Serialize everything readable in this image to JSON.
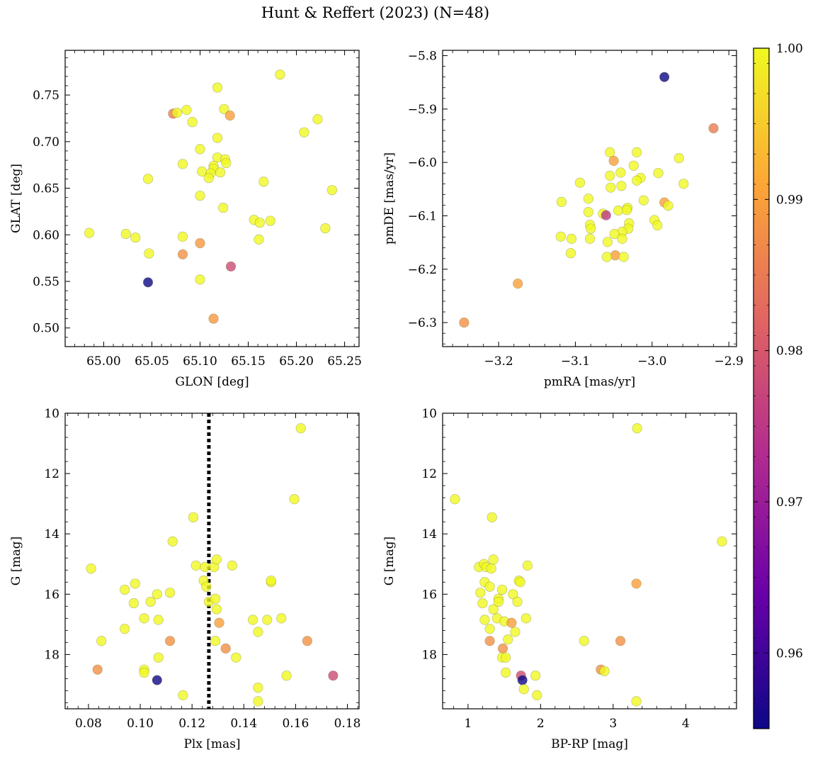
{
  "figure": {
    "title": "Hunt & Reffert (2023) (N=48)"
  },
  "colorbar": {
    "min": 0.955,
    "max": 1.0,
    "ticks": [
      "0.96",
      "0.97",
      "0.98",
      "0.99",
      "1.00"
    ],
    "tick_values": [
      0.96,
      0.97,
      0.98,
      0.99,
      1.0
    ],
    "colormap": "plasma",
    "colors": [
      "#0d0887",
      "#6a00a8",
      "#b12a90",
      "#e16462",
      "#fca636",
      "#f0f921"
    ]
  },
  "chart_data": [
    {
      "type": "scatter",
      "id": "glon-glat",
      "xlabel": "GLON [deg]",
      "ylabel": "GLAT [deg]",
      "xlim": [
        64.96,
        65.265
      ],
      "ylim": [
        0.48,
        0.798
      ],
      "xticks": [
        65.0,
        65.05,
        65.1,
        65.15,
        65.2,
        65.25
      ],
      "xtick_labels": [
        "65.00",
        "65.05",
        "65.10",
        "65.15",
        "65.20",
        "65.25"
      ],
      "yticks": [
        0.5,
        0.55,
        0.6,
        0.65,
        0.7,
        0.75
      ],
      "ytick_labels": [
        "0.50",
        "0.55",
        "0.60",
        "0.65",
        "0.70",
        "0.75"
      ],
      "points": [
        {
          "x": 64.985,
          "y": 0.602,
          "c": 1.0
        },
        {
          "x": 65.023,
          "y": 0.601,
          "c": 1.0
        },
        {
          "x": 65.033,
          "y": 0.597,
          "c": 1.0
        },
        {
          "x": 65.046,
          "y": 0.66,
          "c": 1.0
        },
        {
          "x": 65.047,
          "y": 0.58,
          "c": 1.0
        },
        {
          "x": 65.046,
          "y": 0.549,
          "c": 0.955
        },
        {
          "x": 65.072,
          "y": 0.73,
          "c": 0.985
        },
        {
          "x": 65.076,
          "y": 0.731,
          "c": 1.0
        },
        {
          "x": 65.086,
          "y": 0.734,
          "c": 1.0
        },
        {
          "x": 65.092,
          "y": 0.721,
          "c": 1.0
        },
        {
          "x": 65.082,
          "y": 0.676,
          "c": 1.0
        },
        {
          "x": 65.082,
          "y": 0.598,
          "c": 1.0
        },
        {
          "x": 65.082,
          "y": 0.579,
          "c": 0.988
        },
        {
          "x": 65.1,
          "y": 0.692,
          "c": 1.0
        },
        {
          "x": 65.102,
          "y": 0.668,
          "c": 1.0
        },
        {
          "x": 65.1,
          "y": 0.642,
          "c": 1.0
        },
        {
          "x": 65.1,
          "y": 0.591,
          "c": 0.989
        },
        {
          "x": 65.1,
          "y": 0.552,
          "c": 1.0
        },
        {
          "x": 65.118,
          "y": 0.758,
          "c": 1.0
        },
        {
          "x": 65.118,
          "y": 0.704,
          "c": 1.0
        },
        {
          "x": 65.118,
          "y": 0.683,
          "c": 1.0
        },
        {
          "x": 65.114,
          "y": 0.674,
          "c": 1.0
        },
        {
          "x": 65.114,
          "y": 0.671,
          "c": 1.0
        },
        {
          "x": 65.121,
          "y": 0.667,
          "c": 1.0
        },
        {
          "x": 65.111,
          "y": 0.666,
          "c": 1.0
        },
        {
          "x": 65.109,
          "y": 0.661,
          "c": 1.0
        },
        {
          "x": 65.126,
          "y": 0.681,
          "c": 1.0
        },
        {
          "x": 65.127,
          "y": 0.677,
          "c": 1.0
        },
        {
          "x": 65.125,
          "y": 0.735,
          "c": 1.0
        },
        {
          "x": 65.131,
          "y": 0.728,
          "c": 0.99
        },
        {
          "x": 65.124,
          "y": 0.629,
          "c": 1.0
        },
        {
          "x": 65.132,
          "y": 0.566,
          "c": 0.978
        },
        {
          "x": 65.114,
          "y": 0.51,
          "c": 0.989
        },
        {
          "x": 65.166,
          "y": 0.657,
          "c": 1.0
        },
        {
          "x": 65.156,
          "y": 0.616,
          "c": 1.0
        },
        {
          "x": 65.162,
          "y": 0.613,
          "c": 1.0
        },
        {
          "x": 65.173,
          "y": 0.615,
          "c": 1.0
        },
        {
          "x": 65.161,
          "y": 0.595,
          "c": 1.0
        },
        {
          "x": 65.183,
          "y": 0.772,
          "c": 1.0
        },
        {
          "x": 65.222,
          "y": 0.724,
          "c": 1.0
        },
        {
          "x": 65.208,
          "y": 0.71,
          "c": 1.0
        },
        {
          "x": 65.237,
          "y": 0.648,
          "c": 1.0
        },
        {
          "x": 65.23,
          "y": 0.607,
          "c": 1.0
        }
      ]
    },
    {
      "type": "scatter",
      "id": "pmra-pmde",
      "xlabel": "pmRA [mas/yr]",
      "ylabel": "pmDE [mas/yr]",
      "xlim": [
        -3.273,
        -2.89
      ],
      "ylim": [
        -6.345,
        -5.79
      ],
      "xticks": [
        -3.2,
        -3.1,
        -3.0,
        -2.9
      ],
      "xtick_labels": [
        "−3.2",
        "−3.1",
        "−3.0",
        "−2.9"
      ],
      "yticks": [
        -6.3,
        -6.2,
        -6.1,
        -6.0,
        -5.9,
        -5.8
      ],
      "ytick_labels": [
        "−6.3",
        "−6.2",
        "−6.1",
        "−6.0",
        "−5.9",
        "−5.8"
      ],
      "points": [
        {
          "x": -2.984,
          "y": -5.84,
          "c": 0.955
        },
        {
          "x": -2.92,
          "y": -5.936,
          "c": 0.985
        },
        {
          "x": -3.055,
          "y": -5.981,
          "c": 1.0
        },
        {
          "x": -3.02,
          "y": -5.981,
          "c": 1.0
        },
        {
          "x": -3.05,
          "y": -5.997,
          "c": 0.99
        },
        {
          "x": -2.965,
          "y": -5.992,
          "c": 1.0
        },
        {
          "x": -3.024,
          "y": -6.006,
          "c": 1.0
        },
        {
          "x": -3.041,
          "y": -6.019,
          "c": 1.0
        },
        {
          "x": -2.992,
          "y": -6.02,
          "c": 1.0
        },
        {
          "x": -3.055,
          "y": -6.025,
          "c": 1.0
        },
        {
          "x": -3.015,
          "y": -6.029,
          "c": 1.0
        },
        {
          "x": -3.02,
          "y": -6.034,
          "c": 1.0
        },
        {
          "x": -3.094,
          "y": -6.038,
          "c": 1.0
        },
        {
          "x": -2.959,
          "y": -6.04,
          "c": 1.0
        },
        {
          "x": -3.04,
          "y": -6.044,
          "c": 1.0
        },
        {
          "x": -3.054,
          "y": -6.047,
          "c": 1.0
        },
        {
          "x": -3.083,
          "y": -6.068,
          "c": 1.0
        },
        {
          "x": -3.011,
          "y": -6.071,
          "c": 1.0
        },
        {
          "x": -2.984,
          "y": -6.075,
          "c": 0.99
        },
        {
          "x": -2.979,
          "y": -6.081,
          "c": 1.0
        },
        {
          "x": -3.032,
          "y": -6.085,
          "c": 1.0
        },
        {
          "x": -3.044,
          "y": -6.09,
          "c": 1.0
        },
        {
          "x": -3.033,
          "y": -6.089,
          "c": 1.0
        },
        {
          "x": -3.083,
          "y": -6.093,
          "c": 1.0
        },
        {
          "x": -3.064,
          "y": -6.096,
          "c": 1.0
        },
        {
          "x": -3.06,
          "y": -6.099,
          "c": 0.975
        },
        {
          "x": -2.997,
          "y": -6.108,
          "c": 1.0
        },
        {
          "x": -3.03,
          "y": -6.114,
          "c": 1.0
        },
        {
          "x": -3.118,
          "y": -6.074,
          "c": 1.0
        },
        {
          "x": -3.081,
          "y": -6.117,
          "c": 1.0
        },
        {
          "x": -3.08,
          "y": -6.124,
          "c": 1.0
        },
        {
          "x": -2.993,
          "y": -6.118,
          "c": 1.0
        },
        {
          "x": -3.031,
          "y": -6.124,
          "c": 1.0
        },
        {
          "x": -3.039,
          "y": -6.13,
          "c": 1.0
        },
        {
          "x": -3.049,
          "y": -6.134,
          "c": 1.0
        },
        {
          "x": -3.119,
          "y": -6.139,
          "c": 1.0
        },
        {
          "x": -3.105,
          "y": -6.143,
          "c": 1.0
        },
        {
          "x": -3.081,
          "y": -6.143,
          "c": 1.0
        },
        {
          "x": -3.039,
          "y": -6.143,
          "c": 1.0
        },
        {
          "x": -3.058,
          "y": -6.149,
          "c": 1.0
        },
        {
          "x": -3.106,
          "y": -6.17,
          "c": 1.0
        },
        {
          "x": -3.048,
          "y": -6.174,
          "c": 0.99
        },
        {
          "x": -3.059,
          "y": -6.177,
          "c": 1.0
        },
        {
          "x": -3.037,
          "y": -6.177,
          "c": 1.0
        },
        {
          "x": -3.175,
          "y": -6.227,
          "c": 0.99
        },
        {
          "x": -3.245,
          "y": -6.3,
          "c": 0.988
        }
      ]
    },
    {
      "type": "scatter",
      "id": "plx-g",
      "xlabel": "Plx [mas]",
      "ylabel": "G [mag]",
      "xlim": [
        0.071,
        0.1845
      ],
      "ylim": [
        19.8,
        10.0
      ],
      "y_inverted": true,
      "xticks": [
        0.08,
        0.1,
        0.12,
        0.14,
        0.16,
        0.18
      ],
      "xtick_labels": [
        "0.08",
        "0.10",
        "0.12",
        "0.14",
        "0.16",
        "0.18"
      ],
      "yticks": [
        10,
        12,
        14,
        16,
        18
      ],
      "ytick_labels": [
        "10",
        "12",
        "14",
        "16",
        "18"
      ],
      "vline": {
        "x": 0.1265,
        "style": "dotted",
        "color": "#000000"
      },
      "points": [
        {
          "x": 0.081,
          "y": 15.15,
          "c": 1.0
        },
        {
          "x": 0.0835,
          "y": 18.5,
          "c": 0.988
        },
        {
          "x": 0.085,
          "y": 17.55,
          "c": 1.0
        },
        {
          "x": 0.094,
          "y": 15.85,
          "c": 1.0
        },
        {
          "x": 0.094,
          "y": 17.15,
          "c": 1.0
        },
        {
          "x": 0.098,
          "y": 15.65,
          "c": 1.0
        },
        {
          "x": 0.0975,
          "y": 16.3,
          "c": 1.0
        },
        {
          "x": 0.1015,
          "y": 16.8,
          "c": 1.0
        },
        {
          "x": 0.1015,
          "y": 18.5,
          "c": 1.0
        },
        {
          "x": 0.1015,
          "y": 18.6,
          "c": 1.0
        },
        {
          "x": 0.104,
          "y": 16.25,
          "c": 1.0
        },
        {
          "x": 0.1065,
          "y": 16.0,
          "c": 1.0
        },
        {
          "x": 0.107,
          "y": 16.85,
          "c": 1.0
        },
        {
          "x": 0.107,
          "y": 18.1,
          "c": 1.0
        },
        {
          "x": 0.1065,
          "y": 18.85,
          "c": 0.955
        },
        {
          "x": 0.1115,
          "y": 15.95,
          "c": 1.0
        },
        {
          "x": 0.1115,
          "y": 17.55,
          "c": 0.988
        },
        {
          "x": 0.1125,
          "y": 14.25,
          "c": 1.0
        },
        {
          "x": 0.1165,
          "y": 19.35,
          "c": 1.0
        },
        {
          "x": 0.1205,
          "y": 13.45,
          "c": 1.0
        },
        {
          "x": 0.1215,
          "y": 15.05,
          "c": 1.0
        },
        {
          "x": 0.1245,
          "y": 15.55,
          "c": 1.0
        },
        {
          "x": 0.125,
          "y": 15.1,
          "c": 1.0
        },
        {
          "x": 0.1255,
          "y": 15.75,
          "c": 1.0
        },
        {
          "x": 0.1265,
          "y": 16.25,
          "c": 1.0
        },
        {
          "x": 0.1285,
          "y": 15.1,
          "c": 1.0
        },
        {
          "x": 0.1295,
          "y": 14.85,
          "c": 1.0
        },
        {
          "x": 0.129,
          "y": 16.15,
          "c": 1.0
        },
        {
          "x": 0.1295,
          "y": 16.5,
          "c": 1.0
        },
        {
          "x": 0.1305,
          "y": 16.95,
          "c": 0.99
        },
        {
          "x": 0.129,
          "y": 17.55,
          "c": 1.0
        },
        {
          "x": 0.133,
          "y": 17.8,
          "c": 0.988
        },
        {
          "x": 0.1355,
          "y": 15.05,
          "c": 1.0
        },
        {
          "x": 0.137,
          "y": 18.1,
          "c": 1.0
        },
        {
          "x": 0.1435,
          "y": 16.85,
          "c": 1.0
        },
        {
          "x": 0.1455,
          "y": 17.25,
          "c": 1.0
        },
        {
          "x": 0.1455,
          "y": 19.1,
          "c": 1.0
        },
        {
          "x": 0.1455,
          "y": 19.55,
          "c": 1.0
        },
        {
          "x": 0.149,
          "y": 16.85,
          "c": 1.0
        },
        {
          "x": 0.1505,
          "y": 15.6,
          "c": 1.0
        },
        {
          "x": 0.1505,
          "y": 15.55,
          "c": 1.0
        },
        {
          "x": 0.1545,
          "y": 16.8,
          "c": 1.0
        },
        {
          "x": 0.1565,
          "y": 18.7,
          "c": 1.0
        },
        {
          "x": 0.1595,
          "y": 12.85,
          "c": 1.0
        },
        {
          "x": 0.162,
          "y": 10.5,
          "c": 1.0
        },
        {
          "x": 0.1645,
          "y": 17.55,
          "c": 0.988
        },
        {
          "x": 0.1745,
          "y": 18.7,
          "c": 0.978
        }
      ]
    },
    {
      "type": "scatter",
      "id": "bprp-g",
      "xlabel": "BP-RP [mag]",
      "ylabel": "G [mag]",
      "xlim": [
        0.65,
        4.7
      ],
      "ylim": [
        19.8,
        10.0
      ],
      "y_inverted": true,
      "xticks": [
        1,
        2,
        3,
        4
      ],
      "xtick_labels": [
        "1",
        "2",
        "3",
        "4"
      ],
      "yticks": [
        10,
        12,
        14,
        16,
        18
      ],
      "ytick_labels": [
        "10",
        "12",
        "14",
        "16",
        "18"
      ],
      "points": [
        {
          "x": 0.82,
          "y": 12.85,
          "c": 1.0
        },
        {
          "x": 1.33,
          "y": 13.45,
          "c": 1.0
        },
        {
          "x": 1.15,
          "y": 15.1,
          "c": 1.0
        },
        {
          "x": 1.22,
          "y": 15.0,
          "c": 1.0
        },
        {
          "x": 1.25,
          "y": 15.1,
          "c": 1.0
        },
        {
          "x": 1.32,
          "y": 15.15,
          "c": 1.0
        },
        {
          "x": 1.35,
          "y": 14.85,
          "c": 1.0
        },
        {
          "x": 1.23,
          "y": 15.6,
          "c": 1.0
        },
        {
          "x": 1.3,
          "y": 15.75,
          "c": 1.0
        },
        {
          "x": 1.17,
          "y": 15.95,
          "c": 1.0
        },
        {
          "x": 1.2,
          "y": 16.3,
          "c": 1.0
        },
        {
          "x": 1.35,
          "y": 16.5,
          "c": 1.0
        },
        {
          "x": 1.42,
          "y": 16.15,
          "c": 1.0
        },
        {
          "x": 1.42,
          "y": 16.25,
          "c": 1.0
        },
        {
          "x": 1.47,
          "y": 15.85,
          "c": 1.0
        },
        {
          "x": 1.23,
          "y": 16.85,
          "c": 1.0
        },
        {
          "x": 1.4,
          "y": 16.8,
          "c": 1.0
        },
        {
          "x": 1.5,
          "y": 16.9,
          "c": 1.0
        },
        {
          "x": 1.3,
          "y": 17.15,
          "c": 1.0
        },
        {
          "x": 1.3,
          "y": 17.55,
          "c": 0.988
        },
        {
          "x": 1.55,
          "y": 17.5,
          "c": 1.0
        },
        {
          "x": 1.6,
          "y": 16.95,
          "c": 0.99
        },
        {
          "x": 1.62,
          "y": 16.0,
          "c": 1.0
        },
        {
          "x": 1.65,
          "y": 17.25,
          "c": 1.0
        },
        {
          "x": 1.68,
          "y": 16.25,
          "c": 1.0
        },
        {
          "x": 1.7,
          "y": 15.55,
          "c": 1.0
        },
        {
          "x": 1.72,
          "y": 15.6,
          "c": 1.0
        },
        {
          "x": 1.8,
          "y": 16.8,
          "c": 1.0
        },
        {
          "x": 1.82,
          "y": 15.05,
          "c": 1.0
        },
        {
          "x": 1.48,
          "y": 17.8,
          "c": 0.988
        },
        {
          "x": 1.47,
          "y": 18.1,
          "c": 1.0
        },
        {
          "x": 1.52,
          "y": 18.1,
          "c": 1.0
        },
        {
          "x": 1.52,
          "y": 18.6,
          "c": 1.0
        },
        {
          "x": 1.73,
          "y": 18.7,
          "c": 0.978
        },
        {
          "x": 1.75,
          "y": 18.85,
          "c": 0.955
        },
        {
          "x": 1.77,
          "y": 19.15,
          "c": 1.0
        },
        {
          "x": 1.93,
          "y": 18.7,
          "c": 1.0
        },
        {
          "x": 1.95,
          "y": 19.35,
          "c": 1.0
        },
        {
          "x": 2.6,
          "y": 17.55,
          "c": 1.0
        },
        {
          "x": 2.83,
          "y": 18.5,
          "c": 0.988
        },
        {
          "x": 2.88,
          "y": 18.55,
          "c": 1.0
        },
        {
          "x": 3.1,
          "y": 17.55,
          "c": 0.988
        },
        {
          "x": 3.32,
          "y": 15.65,
          "c": 0.99
        },
        {
          "x": 3.33,
          "y": 10.5,
          "c": 1.0
        },
        {
          "x": 3.32,
          "y": 19.55,
          "c": 1.0
        },
        {
          "x": 4.5,
          "y": 14.25,
          "c": 1.0
        }
      ]
    }
  ]
}
